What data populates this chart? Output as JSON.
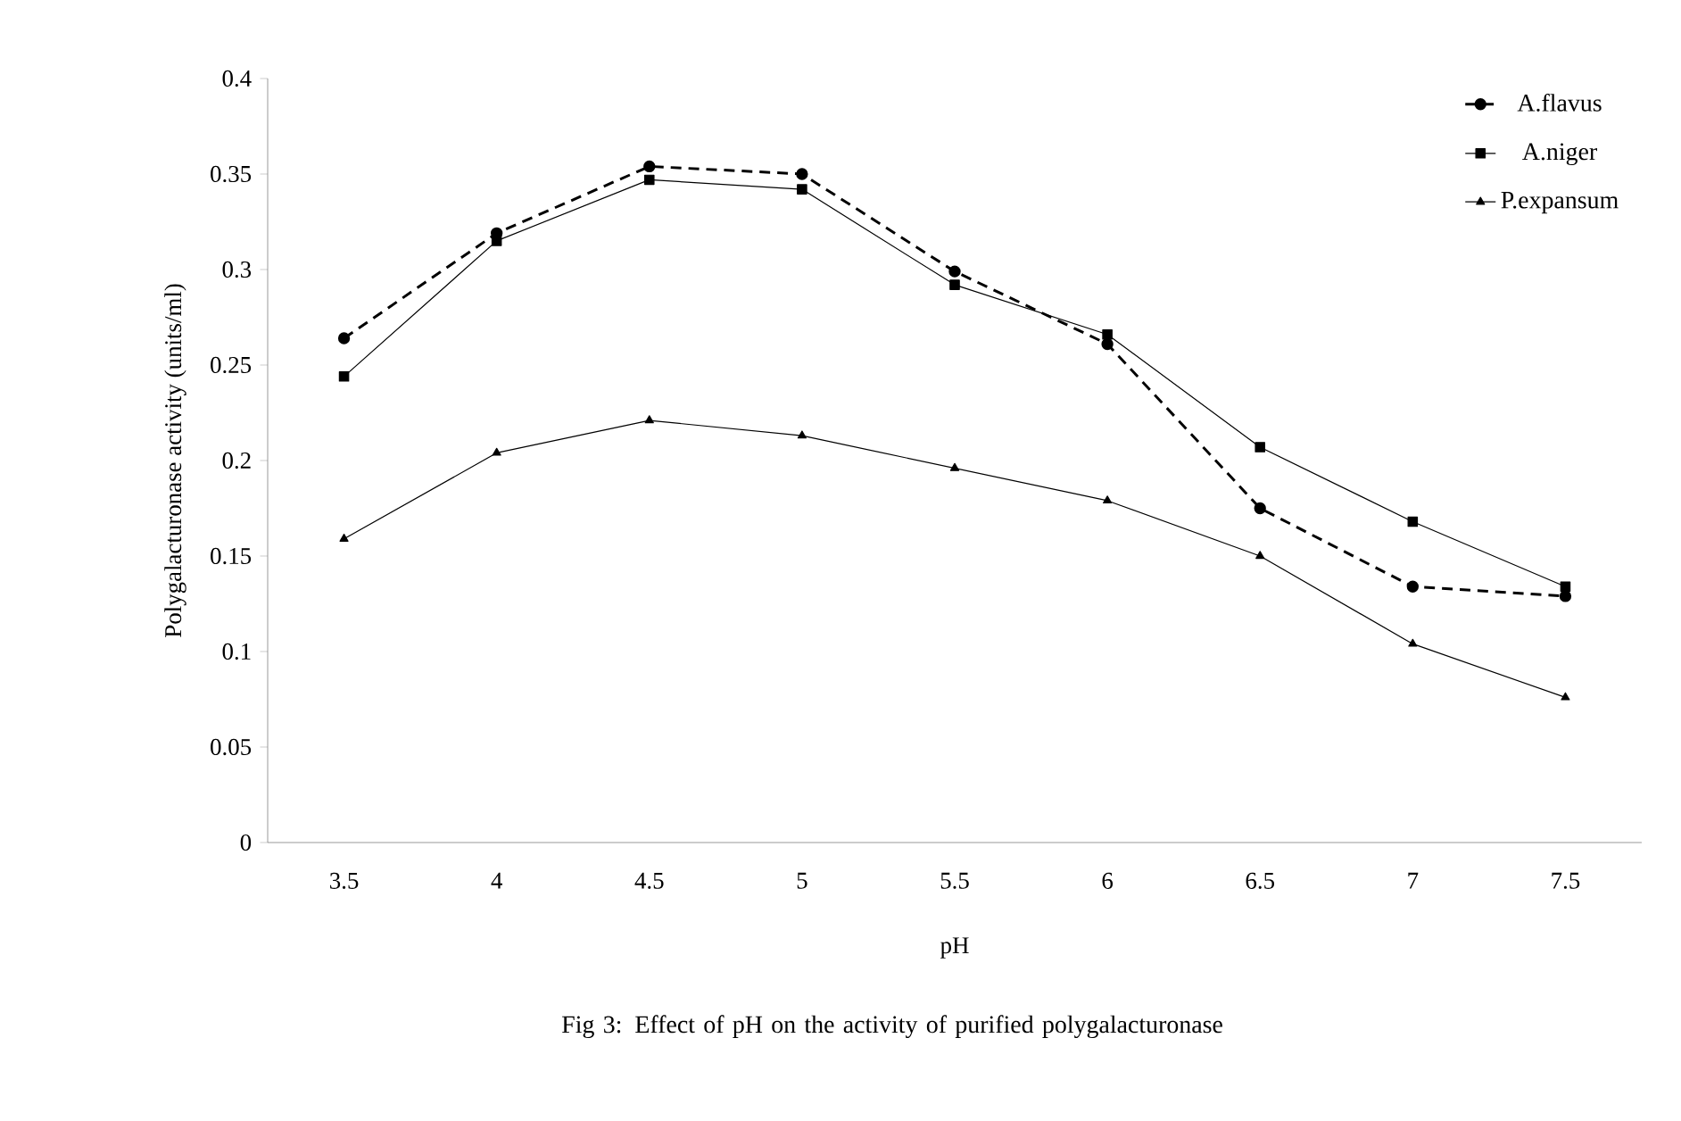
{
  "chart_data": {
    "type": "line",
    "ylabel": "Polygalacturonase activity (units/ml)",
    "xlabel": "pH",
    "categories": [
      "3.5",
      "4",
      "4.5",
      "5",
      "5.5",
      "6",
      "6.5",
      "7",
      "7.5"
    ],
    "series": [
      {
        "name": "A.flavus",
        "color": "#000000",
        "marker": "circle",
        "line_style": "dashed",
        "values": [
          0.264,
          0.319,
          0.354,
          0.35,
          0.299,
          0.261,
          0.175,
          0.134,
          0.129
        ]
      },
      {
        "name": "A.niger",
        "color": "#000000",
        "marker": "square",
        "line_style": "solid",
        "values": [
          0.244,
          0.315,
          0.347,
          0.342,
          0.292,
          0.266,
          0.207,
          0.168,
          0.134
        ]
      },
      {
        "name": "P.expansum",
        "color": "#000000",
        "marker": "triangle",
        "line_style": "solid",
        "values": [
          0.159,
          0.204,
          0.221,
          0.213,
          0.196,
          0.179,
          0.15,
          0.104,
          0.076
        ]
      }
    ],
    "ylim": [
      0,
      0.4
    ],
    "yticks": [
      0,
      0.05,
      0.1,
      0.15,
      0.2,
      0.25,
      0.3,
      0.35,
      0.4
    ],
    "legend": "top right",
    "grid": false,
    "annotations": [
      "Fig 3: Effect of  pH on the activity of purified polygalacturonase"
    ]
  }
}
